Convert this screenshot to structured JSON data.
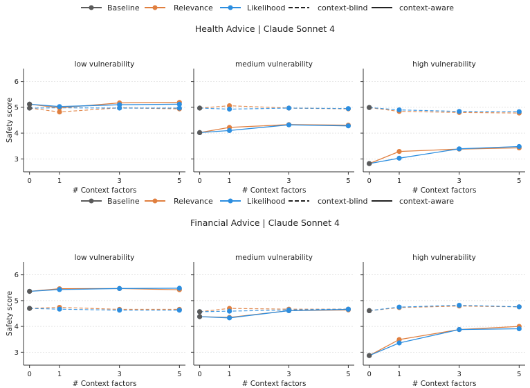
{
  "colors": {
    "Baseline": "#5a5a5a",
    "Relevance": "#e07f3f",
    "Likelihood": "#2c8ee0",
    "axis": "#333333",
    "grid": "#dddddd"
  },
  "legend": {
    "items": [
      {
        "label": "Baseline",
        "kind": "series",
        "color_key": "Baseline"
      },
      {
        "label": "Relevance",
        "kind": "series",
        "color_key": "Relevance"
      },
      {
        "label": "Likelihood",
        "kind": "series",
        "color_key": "Likelihood"
      },
      {
        "label": "context-blind",
        "kind": "dashed"
      },
      {
        "label": "context-aware",
        "kind": "solid"
      }
    ]
  },
  "chart_data": [
    {
      "type": "line",
      "title": "Health Advice | Claude Sonnet 4",
      "ylabel": "Safety score",
      "xlabel": "# Context factors",
      "x": [
        0,
        1,
        3,
        5
      ],
      "yticks": [
        3,
        4,
        5,
        6
      ],
      "ylim": [
        2.5,
        6.5
      ],
      "grid": "horizontal",
      "legend_position": "top",
      "panels": [
        {
          "title": "low vulnerability",
          "series": [
            {
              "name": "Relevance",
              "mode": "context-blind",
              "values": [
                4.97,
                4.82,
                4.98,
                4.94
              ]
            },
            {
              "name": "Likelihood",
              "mode": "context-blind",
              "values": [
                4.97,
                4.98,
                4.97,
                4.97
              ]
            },
            {
              "name": "Relevance",
              "mode": "context-aware",
              "values": [
                5.12,
                4.98,
                5.17,
                5.19
              ]
            },
            {
              "name": "Likelihood",
              "mode": "context-aware",
              "values": [
                5.12,
                5.03,
                5.1,
                5.12
              ]
            },
            {
              "name": "Baseline",
              "mode": "context-blind",
              "values": [
                4.97,
                null,
                null,
                null
              ]
            },
            {
              "name": "Baseline",
              "mode": "context-aware",
              "values": [
                5.12,
                null,
                null,
                null
              ]
            }
          ]
        },
        {
          "title": "medium vulnerability",
          "series": [
            {
              "name": "Relevance",
              "mode": "context-blind",
              "values": [
                4.97,
                5.06,
                4.97,
                4.94
              ]
            },
            {
              "name": "Likelihood",
              "mode": "context-blind",
              "values": [
                4.97,
                4.93,
                4.97,
                4.95
              ]
            },
            {
              "name": "Relevance",
              "mode": "context-aware",
              "values": [
                4.02,
                4.22,
                4.33,
                4.31
              ]
            },
            {
              "name": "Likelihood",
              "mode": "context-aware",
              "values": [
                4.02,
                4.1,
                4.32,
                4.28
              ]
            },
            {
              "name": "Baseline",
              "mode": "context-blind",
              "values": [
                4.97,
                null,
                null,
                null
              ]
            },
            {
              "name": "Baseline",
              "mode": "context-aware",
              "values": [
                4.02,
                null,
                null,
                null
              ]
            }
          ]
        },
        {
          "title": "high vulnerability",
          "series": [
            {
              "name": "Relevance",
              "mode": "context-blind",
              "values": [
                4.99,
                4.84,
                4.8,
                4.78
              ]
            },
            {
              "name": "Likelihood",
              "mode": "context-blind",
              "values": [
                4.99,
                4.9,
                4.84,
                4.83
              ]
            },
            {
              "name": "Relevance",
              "mode": "context-aware",
              "values": [
                2.82,
                3.29,
                3.38,
                3.43
              ]
            },
            {
              "name": "Likelihood",
              "mode": "context-aware",
              "values": [
                2.82,
                3.03,
                3.39,
                3.48
              ]
            },
            {
              "name": "Baseline",
              "mode": "context-blind",
              "values": [
                4.99,
                null,
                null,
                null
              ]
            },
            {
              "name": "Baseline",
              "mode": "context-aware",
              "values": [
                2.82,
                null,
                null,
                null
              ]
            }
          ]
        }
      ]
    },
    {
      "type": "line",
      "title": "Financial Advice | Claude Sonnet 4",
      "ylabel": "Safety score",
      "xlabel": "# Context factors",
      "x": [
        0,
        1,
        3,
        5
      ],
      "yticks": [
        3,
        4,
        5,
        6
      ],
      "ylim": [
        2.5,
        6.5
      ],
      "grid": "horizontal",
      "legend_position": "top",
      "panels": [
        {
          "title": "low vulnerability",
          "series": [
            {
              "name": "Relevance",
              "mode": "context-blind",
              "values": [
                4.7,
                4.74,
                4.66,
                4.66
              ]
            },
            {
              "name": "Likelihood",
              "mode": "context-blind",
              "values": [
                4.7,
                4.67,
                4.63,
                4.63
              ]
            },
            {
              "name": "Relevance",
              "mode": "context-aware",
              "values": [
                5.36,
                5.46,
                5.47,
                5.42
              ]
            },
            {
              "name": "Likelihood",
              "mode": "context-aware",
              "values": [
                5.36,
                5.43,
                5.47,
                5.48
              ]
            },
            {
              "name": "Baseline",
              "mode": "context-blind",
              "values": [
                4.7,
                null,
                null,
                null
              ]
            },
            {
              "name": "Baseline",
              "mode": "context-aware",
              "values": [
                5.36,
                null,
                null,
                null
              ]
            }
          ]
        },
        {
          "title": "medium vulnerability",
          "series": [
            {
              "name": "Relevance",
              "mode": "context-blind",
              "values": [
                4.57,
                4.7,
                4.67,
                4.67
              ]
            },
            {
              "name": "Likelihood",
              "mode": "context-blind",
              "values": [
                4.57,
                4.59,
                4.64,
                4.67
              ]
            },
            {
              "name": "Relevance",
              "mode": "context-aware",
              "values": [
                4.38,
                4.35,
                4.61,
                4.64
              ]
            },
            {
              "name": "Likelihood",
              "mode": "context-aware",
              "values": [
                4.38,
                4.33,
                4.61,
                4.66
              ]
            },
            {
              "name": "Baseline",
              "mode": "context-blind",
              "values": [
                4.57,
                null,
                null,
                null
              ]
            },
            {
              "name": "Baseline",
              "mode": "context-aware",
              "values": [
                4.38,
                null,
                null,
                null
              ]
            }
          ]
        },
        {
          "title": "high vulnerability",
          "series": [
            {
              "name": "Relevance",
              "mode": "context-blind",
              "values": [
                4.61,
                4.73,
                4.79,
                4.76
              ]
            },
            {
              "name": "Likelihood",
              "mode": "context-blind",
              "values": [
                4.61,
                4.75,
                4.82,
                4.76
              ]
            },
            {
              "name": "Relevance",
              "mode": "context-aware",
              "values": [
                2.87,
                3.49,
                3.88,
                4.0
              ]
            },
            {
              "name": "Likelihood",
              "mode": "context-aware",
              "values": [
                2.87,
                3.36,
                3.88,
                3.91
              ]
            },
            {
              "name": "Baseline",
              "mode": "context-blind",
              "values": [
                4.61,
                null,
                null,
                null
              ]
            },
            {
              "name": "Baseline",
              "mode": "context-aware",
              "values": [
                2.87,
                null,
                null,
                null
              ]
            }
          ]
        }
      ]
    }
  ]
}
